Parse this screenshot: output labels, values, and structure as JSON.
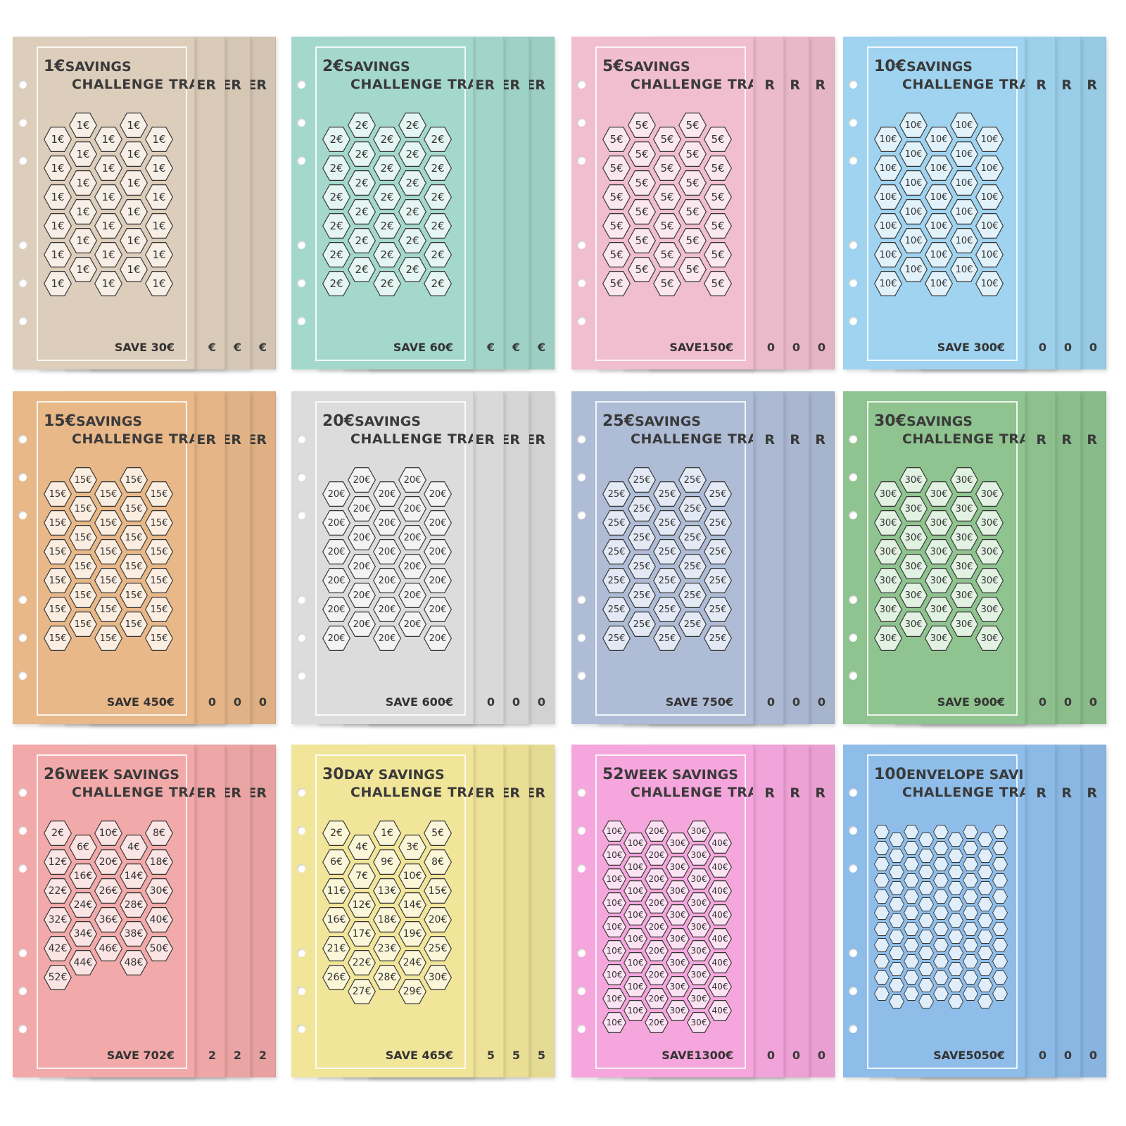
{
  "cards": [
    {
      "title_num": "1€",
      "title_word": "SAVINGS",
      "subtitle": "CHALLENGE TRACKER",
      "total": "SAVE 30€",
      "clip": "ER",
      "clip_total": "€",
      "bg": "#ddcdbb",
      "hexfill": "#f7efe6",
      "grid": "std",
      "values": [
        "1€"
      ]
    },
    {
      "title_num": "2€",
      "title_word": "SAVINGS",
      "subtitle": "CHALLENGE TRACKER",
      "total": "SAVE 60€",
      "clip": "ER",
      "clip_total": "€",
      "bg": "#a4d8cc",
      "hexfill": "#e5f5f1",
      "grid": "std",
      "values": [
        "2€"
      ]
    },
    {
      "title_num": "5€",
      "title_word": "SAVINGS",
      "subtitle": "CHALLENGE TRACKER",
      "total": "SAVE150€",
      "clip": "R",
      "clip_total": "0",
      "bg": "#f0bece",
      "hexfill": "#fbe8ee",
      "grid": "std",
      "values": [
        "5€"
      ]
    },
    {
      "title_num": "10€",
      "title_word": "SAVINGS",
      "subtitle": "CHALLENGE TRACKER",
      "total": "SAVE 300€",
      "clip": "R",
      "clip_total": "0",
      "bg": "#9fd3ef",
      "hexfill": "#e2f2fb",
      "grid": "std",
      "values": [
        "10€"
      ]
    },
    {
      "title_num": "15€",
      "title_word": "SAVINGS",
      "subtitle": "CHALLENGE TRACKER",
      "total": "SAVE 450€",
      "clip": "ER",
      "clip_total": "0",
      "bg": "#e8b889",
      "hexfill": "#fbeee0",
      "grid": "std",
      "values": [
        "15€"
      ]
    },
    {
      "title_num": "20€",
      "title_word": "SAVINGS",
      "subtitle": "CHALLENGE TRACKER",
      "total": "SAVE 600€",
      "clip": "ER",
      "clip_total": "0",
      "bg": "#dcdcdc",
      "hexfill": "#f3f3f3",
      "grid": "std",
      "values": [
        "20€"
      ]
    },
    {
      "title_num": "25€",
      "title_word": "SAVINGS",
      "subtitle": "CHALLENGE TRACKER",
      "total": "SAVE 750€",
      "clip": "R",
      "clip_total": "0",
      "bg": "#aebcd6",
      "hexfill": "#e4eaf5",
      "grid": "std",
      "values": [
        "25€"
      ]
    },
    {
      "title_num": "30€",
      "title_word": "SAVINGS",
      "subtitle": "CHALLENGE TRACKER",
      "total": "SAVE 900€",
      "clip": "R",
      "clip_total": "0",
      "bg": "#8fc38f",
      "hexfill": "#e2f2e2",
      "grid": "std",
      "values": [
        "30€"
      ]
    },
    {
      "title_num": "26",
      "title_word": "WEEK SAVINGS",
      "subtitle": "CHALLENGE TRACKER",
      "total": "SAVE 702€",
      "clip": "ER",
      "clip_total": "2",
      "bg": "#f2a9a9",
      "hexfill": "#fbe4e4",
      "grid": "26week",
      "values": [
        "2€",
        "6€",
        "10€",
        "4€",
        "8€",
        "12€",
        "16€",
        "20€",
        "14€",
        "18€",
        "22€",
        "24€",
        "26€",
        "28€",
        "30€",
        "32€",
        "34€",
        "36€",
        "38€",
        "40€",
        "42€",
        "44€",
        "46€",
        "48€",
        "50€",
        "52€"
      ]
    },
    {
      "title_num": "30",
      "title_word": "DAY SAVINGS",
      "subtitle": "CHALLENGE TRACKER",
      "total": "SAVE 465€",
      "clip": "ER",
      "clip_total": "5",
      "bg": "#f1e59a",
      "hexfill": "#fbf6d8",
      "grid": "30day",
      "values": [
        "2€",
        "4€",
        "1€",
        "3€",
        "5€",
        "6€",
        "7€",
        "9€",
        "10€",
        "8€",
        "11€",
        "12€",
        "13€",
        "14€",
        "15€",
        "16€",
        "17€",
        "18€",
        "19€",
        "20€",
        "21€",
        "22€",
        "23€",
        "24€",
        "25€",
        "26€",
        "27€",
        "28€",
        "29€",
        "30€"
      ]
    },
    {
      "title_num": "52",
      "title_word": "WEEK SAVINGS",
      "subtitle": "CHALLENGE TRACKER",
      "total": "SAVE1300€",
      "clip": "R",
      "clip_total": "0",
      "bg": "#f5a6dc",
      "hexfill": "#fce3f3",
      "grid": "52week",
      "values": [
        "10€",
        "20€",
        "30€",
        "40€"
      ]
    },
    {
      "title_num": "100",
      "title_word": "ENVELOPE SAVINGS",
      "subtitle": "CHALLENGE TRACKER",
      "total": "SAVE5050€",
      "clip": "R",
      "clip_total": "0",
      "bg": "#8ebde9",
      "hexfill": "#e0eefb",
      "grid": "100env",
      "values": []
    }
  ]
}
